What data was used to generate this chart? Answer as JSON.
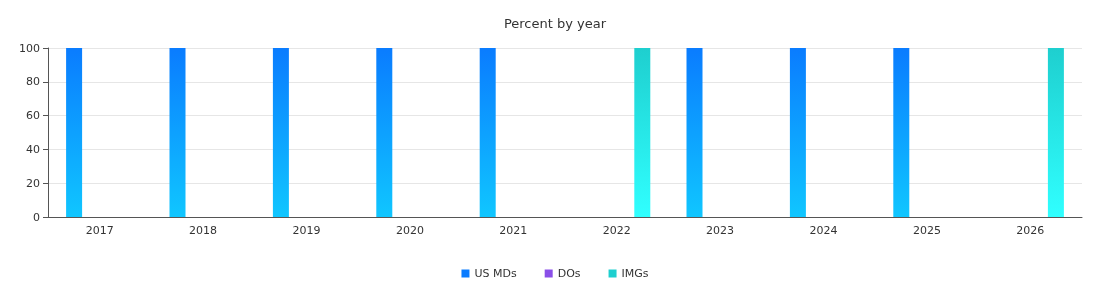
{
  "chart_data": {
    "type": "bar",
    "title": "Percent by year",
    "categories": [
      "2017",
      "2018",
      "2019",
      "2020",
      "2021",
      "2022",
      "2023",
      "2024",
      "2025",
      "2026"
    ],
    "series": [
      {
        "name": "US MDs",
        "color": "#0a7cff",
        "values": [
          100,
          100,
          100,
          100,
          100,
          0,
          100,
          100,
          100,
          0
        ]
      },
      {
        "name": "DOs",
        "color": "#8a4fe8",
        "values": [
          0,
          0,
          0,
          0,
          0,
          0,
          0,
          0,
          0,
          0
        ]
      },
      {
        "name": "IMGs",
        "color": "#1ecfcf",
        "values": [
          0,
          0,
          0,
          0,
          0,
          100,
          0,
          0,
          0,
          100
        ]
      }
    ],
    "ylim": [
      0,
      100
    ],
    "yticks": [
      0,
      20,
      40,
      60,
      80,
      100
    ],
    "grid": "y",
    "legend": "bottom"
  }
}
